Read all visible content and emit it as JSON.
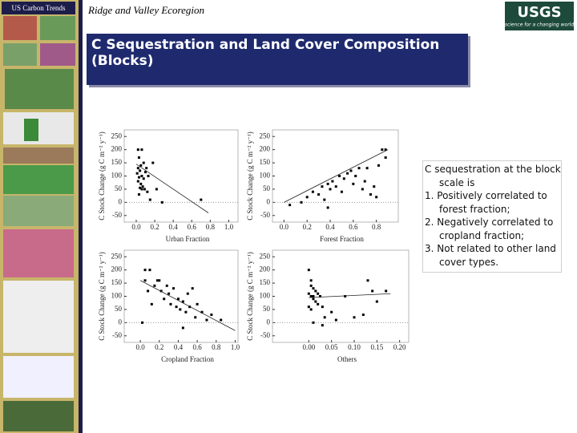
{
  "header": {
    "badge": "US Carbon Trends",
    "subtitle": "Ridge and Valley Ecoregion",
    "logo": "USGS",
    "logo_tagline": "science for a changing world"
  },
  "slide_title": "C Sequestration and Land Cover Composition (Blocks)",
  "notes": {
    "intro": "C sequestration at the block scale is",
    "items": [
      "1. Positively correlated to forest fraction;",
      "2. Negatively correlated to cropland fraction;",
      "3. Not related to other land cover types."
    ]
  },
  "chart_data": [
    {
      "type": "scatter",
      "xlabel": "Urban Fraction",
      "ylabel": "C Stock Change (g C m⁻² y⁻¹)",
      "color": "#000000",
      "x": [
        0.02,
        0.06,
        0.03,
        0.08,
        0.05,
        0.02,
        0.04,
        0.1,
        0.01,
        0.06,
        0.03,
        0.08,
        0.02,
        0.05,
        0.07,
        0.04,
        0.09,
        0.12,
        0.03,
        0.06,
        0.15,
        0.18,
        0.22,
        0.28,
        0.7,
        0.11,
        0.13
      ],
      "y": [
        200,
        200,
        170,
        150,
        140,
        130,
        120,
        115,
        110,
        100,
        95,
        90,
        80,
        70,
        60,
        55,
        50,
        40,
        30,
        50,
        10,
        150,
        50,
        0,
        10,
        130,
        100
      ],
      "fit": {
        "x": [
          0,
          0.78
        ],
        "y": [
          145,
          -40
        ]
      },
      "hline": 0,
      "xlim": [
        -0.13,
        1.1
      ],
      "ylim": [
        -75,
        275
      ],
      "xticks": [
        {
          "value": 0,
          "label": "0.0"
        },
        {
          "value": 0.2,
          "label": "0.2"
        },
        {
          "value": 0.4,
          "label": "0.4"
        },
        {
          "value": 0.6,
          "label": "0.6"
        },
        {
          "value": 0.8,
          "label": "0.8"
        },
        {
          "value": 1,
          "label": "1.0"
        }
      ],
      "yticks": [
        250,
        200,
        150,
        100,
        50,
        0,
        -50
      ]
    },
    {
      "type": "scatter",
      "xlabel": "Forest Fraction",
      "ylabel": "C Stock Change (g C m⁻² y⁻¹)",
      "color": "#000000",
      "x": [
        0.05,
        0.15,
        0.2,
        0.25,
        0.3,
        0.33,
        0.35,
        0.38,
        0.4,
        0.42,
        0.45,
        0.48,
        0.5,
        0.52,
        0.55,
        0.58,
        0.6,
        0.62,
        0.65,
        0.68,
        0.7,
        0.72,
        0.75,
        0.78,
        0.82,
        0.85,
        0.88,
        0.88,
        0.8,
        0.38
      ],
      "y": [
        -10,
        0,
        20,
        40,
        30,
        60,
        10,
        70,
        50,
        80,
        60,
        100,
        40,
        90,
        110,
        120,
        70,
        100,
        130,
        50,
        80,
        130,
        30,
        60,
        140,
        200,
        200,
        170,
        20,
        -20
      ],
      "fit": {
        "x": [
          0,
          0.9
        ],
        "y": [
          0,
          200
        ]
      },
      "hline": 0,
      "xlim": [
        -0.1,
        0.99
      ],
      "ylim": [
        -75,
        275
      ],
      "xticks": [
        {
          "value": 0,
          "label": "0.0"
        },
        {
          "value": 0.2,
          "label": "0.2"
        },
        {
          "value": 0.4,
          "label": "0.4"
        },
        {
          "value": 0.6,
          "label": "0.6"
        },
        {
          "value": 0.8,
          "label": "0.8"
        }
      ],
      "yticks": [
        250,
        200,
        150,
        100,
        50,
        0,
        -50
      ]
    },
    {
      "type": "scatter",
      "xlabel": "Cropland Fraction",
      "ylabel": "C Stock Change (g C m⁻² y⁻¹)",
      "color": "#000000",
      "x": [
        0.05,
        0.1,
        0.05,
        0.08,
        0.12,
        0.15,
        0.18,
        0.2,
        0.22,
        0.25,
        0.28,
        0.3,
        0.32,
        0.35,
        0.38,
        0.4,
        0.42,
        0.45,
        0.48,
        0.5,
        0.52,
        0.55,
        0.58,
        0.6,
        0.65,
        0.7,
        0.75,
        0.85,
        0.45,
        0.02
      ],
      "y": [
        200,
        200,
        160,
        120,
        70,
        140,
        160,
        160,
        120,
        90,
        140,
        110,
        70,
        130,
        60,
        90,
        50,
        80,
        40,
        110,
        60,
        130,
        20,
        70,
        40,
        10,
        30,
        10,
        -20,
        0
      ],
      "fit": {
        "x": [
          0,
          1
        ],
        "y": [
          160,
          -30
        ]
      },
      "hline": 0,
      "xlim": [
        -0.17,
        1.03
      ],
      "ylim": [
        -75,
        275
      ],
      "xticks": [
        {
          "value": 0,
          "label": "0.0"
        },
        {
          "value": 0.2,
          "label": "0.2"
        },
        {
          "value": 0.4,
          "label": "0.4"
        },
        {
          "value": 0.6,
          "label": "0.6"
        },
        {
          "value": 0.8,
          "label": "0.8"
        },
        {
          "value": 1,
          "label": "1.0"
        }
      ],
      "yticks": [
        250,
        200,
        150,
        100,
        50,
        0,
        -50
      ]
    },
    {
      "type": "scatter",
      "xlabel": "Others",
      "ylabel": "C Stock Change (g C m⁻² y⁻¹)",
      "color": "#000000",
      "x": [
        0.0,
        0.005,
        0.01,
        0.0,
        0.005,
        0.01,
        0.015,
        0.02,
        0.0,
        0.005,
        0.01,
        0.02,
        0.025,
        0.03,
        0.035,
        0.01,
        0.03,
        0.05,
        0.06,
        0.08,
        0.1,
        0.12,
        0.13,
        0.14,
        0.15,
        0.17,
        0.005,
        0.015
      ],
      "y": [
        200,
        160,
        130,
        110,
        100,
        90,
        80,
        70,
        60,
        50,
        100,
        110,
        100,
        60,
        20,
        0,
        -10,
        40,
        10,
        100,
        20,
        30,
        160,
        120,
        80,
        120,
        140,
        120
      ],
      "fit": {
        "x": [
          0,
          0.18
        ],
        "y": [
          95,
          110
        ]
      },
      "hline": 0,
      "xlim": [
        -0.08,
        0.22
      ],
      "ylim": [
        -75,
        275
      ],
      "xticks": [
        {
          "value": 0,
          "label": "0.00"
        },
        {
          "value": 0.05,
          "label": "0.05"
        },
        {
          "value": 0.1,
          "label": "0.10"
        },
        {
          "value": 0.15,
          "label": "0.15"
        },
        {
          "value": 0.2,
          "label": "0.20"
        }
      ],
      "yticks": [
        250,
        200,
        150,
        100,
        50,
        0,
        -50
      ]
    }
  ]
}
